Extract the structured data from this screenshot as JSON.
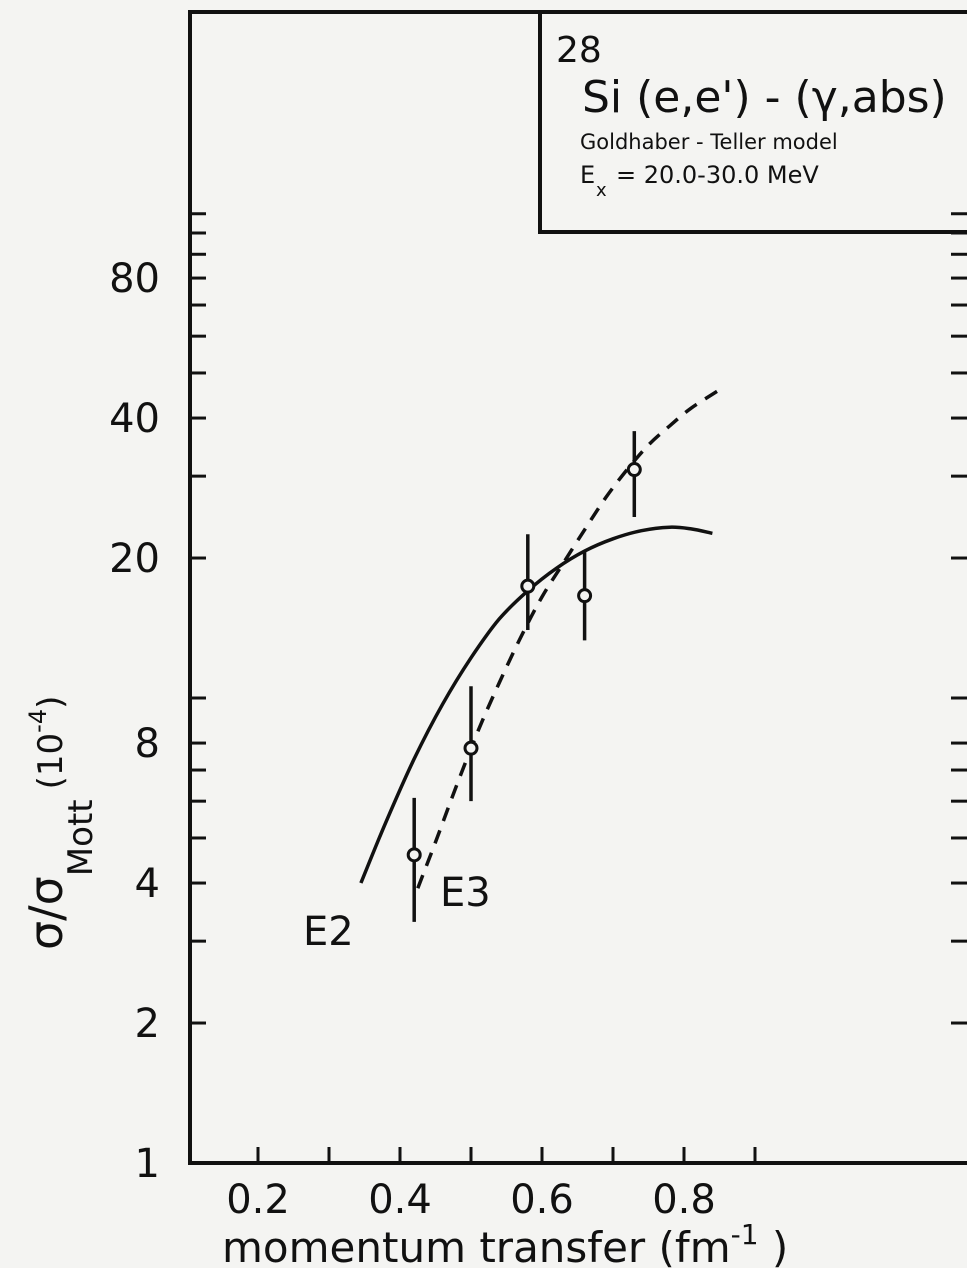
{
  "chart_data": {
    "type": "scatter",
    "info_box": {
      "mass_number": "28",
      "reaction": "Si (e,e') - (γ,abs)",
      "model": "Goldhaber - Teller model",
      "ex_label": "E",
      "ex_subscript": "x",
      "ex_value": "= 20.0-30.0 MeV"
    },
    "x_axis": {
      "label": "momentum   transfer   (fm",
      "label_sup": "-1",
      "label_close": " )",
      "range": [
        0.1,
        1.0
      ],
      "ticks": [
        0.2,
        0.3,
        0.4,
        0.5,
        0.6,
        0.7,
        0.8,
        0.9
      ],
      "tick_labels": [
        {
          "value": 0.2,
          "text": "0.2"
        },
        {
          "value": 0.4,
          "text": "0.4"
        },
        {
          "value": 0.6,
          "text": "0.6"
        },
        {
          "value": 0.8,
          "text": "0.8"
        }
      ]
    },
    "y_axis": {
      "label_main": "σ/σ",
      "label_sub": "Mott",
      "label_units": "(10",
      "label_sup": "-4",
      "label_close": ")",
      "scale": "log",
      "range": [
        1,
        80
      ],
      "tick_labels": [
        {
          "value": 1,
          "text": "1"
        },
        {
          "value": 2,
          "text": "2"
        },
        {
          "value": 4,
          "text": "4"
        },
        {
          "value": 8,
          "text": "8"
        },
        {
          "value": 20,
          "text": "20"
        },
        {
          "value": 40,
          "text": "40"
        },
        {
          "value": 80,
          "text": "80"
        }
      ],
      "minor_ticks": [
        1,
        2,
        3,
        4,
        5,
        6,
        7,
        8,
        10,
        20,
        30,
        40,
        50,
        60,
        70,
        80,
        90,
        100,
        110
      ]
    },
    "series": [
      {
        "name": "E2",
        "style": "solid",
        "x": [
          0.345,
          0.38,
          0.42,
          0.46,
          0.5,
          0.54,
          0.58,
          0.62,
          0.66,
          0.7,
          0.74,
          0.78,
          0.81,
          0.84
        ],
        "y": [
          4.0,
          5.4,
          7.4,
          9.7,
          12.2,
          14.8,
          17.0,
          19.0,
          20.7,
          22.0,
          22.9,
          23.3,
          23.1,
          22.6
        ]
      },
      {
        "name": "E3",
        "style": "dashed",
        "x": [
          0.425,
          0.45,
          0.48,
          0.51,
          0.54,
          0.57,
          0.6,
          0.63,
          0.66,
          0.69,
          0.72,
          0.75,
          0.78,
          0.81,
          0.85
        ],
        "y": [
          3.9,
          4.9,
          6.5,
          8.5,
          10.8,
          13.5,
          16.5,
          19.5,
          23.0,
          27.0,
          31.0,
          35.0,
          38.5,
          42.0,
          46.0
        ]
      }
    ],
    "points": [
      {
        "x": 0.42,
        "y": 4.6,
        "y_low": 3.3,
        "y_high": 6.1
      },
      {
        "x": 0.5,
        "y": 7.8,
        "y_low": 6.0,
        "y_high": 10.6
      },
      {
        "x": 0.58,
        "y": 17.4,
        "y_low": 14.0,
        "y_high": 22.5
      },
      {
        "x": 0.66,
        "y": 16.6,
        "y_low": 13.3,
        "y_high": 20.8
      },
      {
        "x": 0.73,
        "y": 31.0,
        "y_low": 24.5,
        "y_high": 37.5
      }
    ]
  }
}
